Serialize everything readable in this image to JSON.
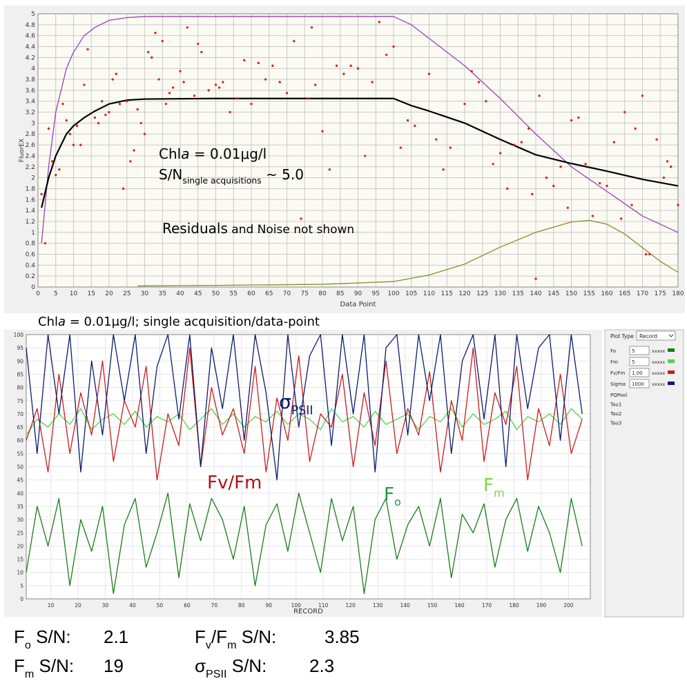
{
  "caption": [
    "Chl",
    {
      "it": "a"
    },
    " = 0.01μg/l;  single acquisition/data-point"
  ],
  "chart_data": [
    {
      "type": "line",
      "y_label": "FluorEX",
      "x_label": "Data Point",
      "xlim": [
        0,
        180
      ],
      "ylim": [
        0,
        5
      ],
      "xticks": [
        0,
        5,
        10,
        15,
        20,
        25,
        30,
        35,
        40,
        45,
        50,
        55,
        60,
        65,
        70,
        75,
        80,
        85,
        90,
        95,
        100,
        105,
        110,
        115,
        120,
        125,
        130,
        135,
        140,
        145,
        150,
        155,
        160,
        165,
        170,
        175,
        180
      ],
      "yticks": [
        0,
        0.2,
        0.4,
        0.6,
        0.8,
        1,
        1.2,
        1.4,
        1.6,
        1.8,
        2,
        2.2,
        2.4,
        2.6,
        2.8,
        3,
        3.2,
        3.4,
        3.6,
        3.8,
        4,
        4.2,
        4.4,
        4.6,
        4.8,
        5
      ],
      "grid": true,
      "annotations": [
        {
          "parts": [
            "Chl",
            {
              "it": "a"
            },
            " = 0.01μg/l"
          ]
        },
        {
          "parts": [
            "S/N",
            {
              "sub": "single acquisitions"
            },
            "  ~ 5.0"
          ]
        },
        {
          "parts": [
            "Residuals",
            {
              "small": " and Noise not shown"
            }
          ]
        }
      ],
      "series": [
        {
          "color": "#9b3fb5",
          "mode": "line",
          "x": [
            1,
            3,
            5,
            8,
            10,
            13,
            16,
            20,
            25,
            30,
            40,
            60,
            80,
            100,
            105,
            110,
            120,
            130,
            140,
            150,
            160,
            170,
            180
          ],
          "values": [
            0.8,
            2.2,
            3.2,
            4.0,
            4.3,
            4.6,
            4.75,
            4.88,
            4.93,
            4.95,
            4.95,
            4.95,
            4.95,
            4.95,
            4.8,
            4.55,
            4.05,
            3.45,
            2.8,
            2.2,
            1.75,
            1.3,
            1.0
          ]
        },
        {
          "color": "#000000",
          "mode": "line",
          "x": [
            1,
            3,
            5,
            8,
            10,
            13,
            16,
            20,
            25,
            30,
            50,
            100,
            105,
            110,
            120,
            130,
            140,
            150,
            160,
            170,
            180
          ],
          "values": [
            1.45,
            2.0,
            2.4,
            2.8,
            2.95,
            3.1,
            3.22,
            3.35,
            3.42,
            3.44,
            3.45,
            3.45,
            3.32,
            3.22,
            3.0,
            2.7,
            2.42,
            2.26,
            2.12,
            1.97,
            1.85
          ]
        },
        {
          "color": "#8a8a2a",
          "mode": "line",
          "x": [
            28,
            50,
            80,
            100,
            110,
            120,
            130,
            140,
            150,
            155,
            160,
            165,
            170,
            175,
            180
          ],
          "values": [
            0.02,
            0.03,
            0.05,
            0.1,
            0.22,
            0.42,
            0.73,
            1.0,
            1.19,
            1.22,
            1.15,
            0.97,
            0.72,
            0.47,
            0.27
          ]
        },
        {
          "color": "#e02020",
          "mode": "markers",
          "x": [
            1,
            2,
            3,
            4,
            5,
            6,
            7,
            8,
            9,
            10,
            11,
            12,
            13,
            14,
            16,
            17,
            18,
            19,
            20,
            21,
            22,
            23,
            24,
            25,
            26,
            27,
            28,
            29,
            30,
            31,
            32,
            33,
            34,
            35,
            36,
            37,
            38,
            40,
            41,
            42,
            44,
            45,
            46,
            48,
            50,
            51,
            52,
            54,
            56,
            58,
            60,
            62,
            64,
            66,
            68,
            70,
            72,
            74,
            76,
            77,
            78,
            80,
            82,
            84,
            86,
            88,
            90,
            92,
            94,
            96,
            98,
            100,
            102,
            104,
            106,
            110,
            112,
            114,
            116,
            120,
            122,
            124,
            126,
            128,
            130,
            132,
            134,
            136,
            138,
            139,
            140,
            141,
            143,
            145,
            147,
            149,
            150,
            152,
            154,
            156,
            158,
            160,
            162,
            164,
            165,
            167,
            168,
            170,
            171,
            172,
            174,
            176,
            177,
            178,
            180
          ],
          "values": [
            1.7,
            0.8,
            2.9,
            2.3,
            2.05,
            2.15,
            3.35,
            3.05,
            2.8,
            2.6,
            2.95,
            2.6,
            3.7,
            4.35,
            3.1,
            3.0,
            3.4,
            3.15,
            3.2,
            3.8,
            3.9,
            3.35,
            1.8,
            3.4,
            2.3,
            2.5,
            3.25,
            3.0,
            2.8,
            4.3,
            4.2,
            4.65,
            3.8,
            4.5,
            3.35,
            3.55,
            3.65,
            3.95,
            3.75,
            4.75,
            3.5,
            4.45,
            4.3,
            3.6,
            3.7,
            3.65,
            3.75,
            3.2,
            3.45,
            4.15,
            3.35,
            4.1,
            3.8,
            4.05,
            3.75,
            3.55,
            4.5,
            1.25,
            3.45,
            4.75,
            3.7,
            2.85,
            2.15,
            4.05,
            3.9,
            4.05,
            4.0,
            2.4,
            3.75,
            4.85,
            4.25,
            4.4,
            2.55,
            3.05,
            2.95,
            3.9,
            2.7,
            2.15,
            2.55,
            3.35,
            3.95,
            3.75,
            3.4,
            2.25,
            2.45,
            1.8,
            2.6,
            2.65,
            2.9,
            1.7,
            0.15,
            3.5,
            2.0,
            1.85,
            2.2,
            1.45,
            3.05,
            3.1,
            2.25,
            1.3,
            1.9,
            1.85,
            2.65,
            1.25,
            3.2,
            1.5,
            2.9,
            3.5,
            0.6,
            0.6,
            2.7,
            2.0,
            2.3,
            2.2,
            1.5
          ]
        }
      ]
    },
    {
      "type": "line",
      "x_label": "RECORD",
      "xlim": [
        1,
        208
      ],
      "ylim": [
        0,
        100
      ],
      "xticks": [
        10,
        20,
        30,
        40,
        50,
        60,
        70,
        80,
        90,
        100,
        110,
        120,
        130,
        140,
        150,
        160,
        170,
        180,
        190,
        200
      ],
      "yticks": [
        0,
        5,
        10,
        15,
        20,
        25,
        30,
        35,
        40,
        45,
        50,
        55,
        60,
        65,
        70,
        75,
        80,
        85,
        90,
        95,
        100
      ],
      "grid": true,
      "x": [
        1,
        5,
        9,
        13,
        17,
        21,
        25,
        29,
        33,
        37,
        41,
        45,
        49,
        53,
        57,
        61,
        65,
        69,
        73,
        77,
        81,
        85,
        89,
        93,
        97,
        101,
        105,
        109,
        113,
        117,
        121,
        125,
        129,
        133,
        137,
        141,
        145,
        149,
        153,
        157,
        161,
        165,
        169,
        173,
        177,
        181,
        185,
        189,
        193,
        197,
        201,
        205
      ],
      "annotations": [
        {
          "parts": [
            "σ",
            {
              "sub": "PSII"
            }
          ]
        },
        {
          "parts": [
            "Fv/Fm"
          ]
        },
        {
          "parts": [
            "F",
            {
              "sub": "o"
            }
          ]
        },
        {
          "parts": [
            "F",
            {
              "sub": "m"
            }
          ]
        }
      ],
      "series": [
        {
          "name": "Fo",
          "color": "#1a7a1a",
          "mode": "line",
          "values": [
            10,
            35,
            20,
            38,
            5,
            30,
            18,
            35,
            2,
            28,
            38,
            12,
            25,
            40,
            8,
            36,
            22,
            38,
            30,
            15,
            35,
            5,
            28,
            36,
            18,
            40,
            25,
            10,
            38,
            22,
            35,
            2,
            30,
            38,
            15,
            28,
            35,
            20,
            38,
            8,
            32,
            25,
            36,
            12,
            30,
            38,
            18,
            35,
            25,
            10,
            38,
            20
          ]
        },
        {
          "name": "Fm",
          "color": "#4fd34f",
          "mode": "line",
          "values": [
            62,
            68,
            65,
            70,
            66,
            72,
            64,
            68,
            70,
            66,
            71,
            65,
            69,
            67,
            70,
            64,
            68,
            72,
            66,
            70,
            65,
            69,
            67,
            71,
            66,
            70,
            68,
            64,
            72,
            67,
            69,
            65,
            71,
            66,
            68,
            70,
            64,
            69,
            67,
            72,
            65,
            70,
            66,
            68,
            71,
            64,
            69,
            67,
            70,
            66,
            72,
            68
          ]
        },
        {
          "name": "Fv/Fm",
          "color": "#cc1a1a",
          "mode": "line",
          "values": [
            60,
            72,
            48,
            85,
            55,
            78,
            62,
            90,
            52,
            75,
            65,
            88,
            45,
            70,
            58,
            95,
            50,
            80,
            62,
            72,
            55,
            88,
            48,
            76,
            60,
            92,
            52,
            70,
            65,
            85,
            50,
            78,
            58,
            90,
            55,
            72,
            62,
            86,
            48,
            75,
            60,
            95,
            52,
            78,
            66,
            88,
            45,
            72,
            58,
            85,
            55,
            68
          ]
        },
        {
          "name": "Sigma",
          "color": "#0a1a6e",
          "mode": "line",
          "values": [
            95,
            55,
            100,
            70,
            100,
            48,
            90,
            62,
            100,
            75,
            100,
            55,
            88,
            100,
            68,
            100,
            50,
            95,
            72,
            100,
            60,
            100,
            78,
            45,
            100,
            65,
            92,
            100,
            58,
            100,
            70,
            100,
            48,
            95,
            100,
            62,
            100,
            75,
            100,
            55,
            90,
            100,
            68,
            100,
            50,
            100,
            72,
            95,
            100,
            60,
            100,
            70
          ]
        }
      ]
    }
  ],
  "panel": {
    "title": "Plot Type",
    "select": "Record",
    "rows": [
      {
        "value": "5",
        "code": "xxxxx"
      },
      {
        "value": "5",
        "code": "xxxxx"
      },
      {
        "value": "1.00",
        "code": "xxxxx"
      },
      {
        "value": "1000",
        "code": "xxxxx"
      }
    ],
    "extra": [
      "PQPool",
      "Tau1",
      "Tau2",
      "Tau3"
    ]
  },
  "footer": [
    {
      "parts": [
        "F",
        {
          "sub": "o"
        },
        " S/N:"
      ],
      "value": "2.1"
    },
    {
      "parts": [
        "F",
        {
          "sub": "v"
        },
        "/F",
        {
          "sub": "m"
        },
        "  S/N:"
      ],
      "value": "3.85"
    },
    {
      "parts": [
        "F",
        {
          "sub": "m"
        },
        " S/N:"
      ],
      "value": "19"
    },
    {
      "parts": [
        "σ",
        {
          "sub": "PSII"
        },
        "  S/N:"
      ],
      "value": "2.3"
    }
  ]
}
